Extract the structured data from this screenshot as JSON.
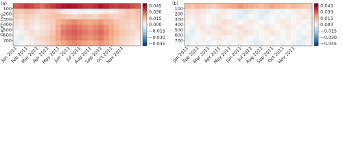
{
  "chart_data": [
    {
      "type": "heatmap",
      "title": "(a)",
      "ylabel": "Depth (m)",
      "colormap": "RdBu_r",
      "x": [
        "Jan 2011",
        null,
        "Feb 2011",
        null,
        "Mar 2011",
        null,
        "Apr 2011",
        null,
        "May 2011",
        null,
        "Jun 2011",
        null,
        "Jul 2011",
        null,
        "Aug 2011",
        null,
        "Sep 2011",
        null,
        "Oct 2011",
        null,
        "Nov 2011",
        null,
        null,
        null
      ],
      "y": [
        50,
        150,
        250,
        350,
        450,
        550,
        650,
        750
      ],
      "ylim": [
        800,
        0
      ],
      "yticks": [
        100,
        200,
        300,
        400,
        500,
        600,
        700
      ],
      "clim": [
        -0.05,
        0.05
      ],
      "cticks": [
        0.045,
        {
          "value": 0.03,
          "label": "0.030"
        },
        0.015,
        {
          "value": 0,
          "label": "0.000"
        },
        {
          "value": -0.015,
          "label": "−0.015"
        },
        {
          "value": -0.03,
          "label": "−0.030"
        },
        {
          "value": -0.045,
          "label": "−0.045"
        }
      ],
      "z": [
        [
          0.03,
          0.032,
          0.035,
          0.033,
          0.03,
          0.028,
          0.032,
          0.035,
          0.038,
          0.04,
          0.042,
          0.04,
          0.038,
          0.036,
          0.035,
          0.037,
          0.04,
          0.038,
          0.035,
          0.034,
          0.036,
          0.035,
          0.032,
          0.03
        ],
        [
          0.012,
          0.01,
          0.014,
          0.012,
          0.01,
          0.008,
          0.01,
          0.012,
          0.008,
          0.004,
          0.002,
          0.0,
          -0.002,
          0.002,
          0.0,
          -0.002,
          0.002,
          0.004,
          0.002,
          0.004,
          0.008,
          0.012,
          0.01,
          0.014
        ],
        [
          0.01,
          0.008,
          0.01,
          0.008,
          0.006,
          0.008,
          0.01,
          0.012,
          0.014,
          0.012,
          0.01,
          0.008,
          0.01,
          0.012,
          0.01,
          0.008,
          0.012,
          0.014,
          0.01,
          0.008,
          0.01,
          0.012,
          0.01,
          0.012
        ],
        [
          0.006,
          0.004,
          0.008,
          0.006,
          0.004,
          0.006,
          0.008,
          0.01,
          0.016,
          0.02,
          0.022,
          0.024,
          0.022,
          0.02,
          0.018,
          0.02,
          0.022,
          0.018,
          0.016,
          0.012,
          0.01,
          0.01,
          0.008,
          0.01
        ],
        [
          0.004,
          0.002,
          0.006,
          0.004,
          0.002,
          0.004,
          0.006,
          0.01,
          0.018,
          0.024,
          0.026,
          0.028,
          0.026,
          0.024,
          0.022,
          0.024,
          0.026,
          0.022,
          0.018,
          0.014,
          0.01,
          0.008,
          0.006,
          0.008
        ],
        [
          0.0,
          -0.002,
          0.004,
          0.006,
          0.004,
          0.006,
          0.008,
          0.012,
          0.02,
          0.026,
          0.028,
          0.03,
          0.028,
          0.026,
          0.024,
          0.026,
          0.028,
          0.024,
          0.02,
          0.016,
          0.012,
          0.01,
          0.008,
          0.006
        ],
        [
          -0.002,
          -0.004,
          0.002,
          0.004,
          0.006,
          0.008,
          0.01,
          0.014,
          0.02,
          0.024,
          0.026,
          0.028,
          0.026,
          0.024,
          0.022,
          0.024,
          0.026,
          0.022,
          0.018,
          0.014,
          0.01,
          0.008,
          0.006,
          0.004
        ],
        [
          -0.004,
          -0.002,
          0.0,
          0.002,
          0.004,
          0.006,
          0.008,
          0.012,
          0.016,
          0.02,
          0.022,
          0.024,
          0.022,
          0.02,
          0.018,
          0.02,
          0.022,
          0.02,
          0.016,
          0.012,
          0.008,
          0.006,
          0.004,
          0.002
        ]
      ]
    },
    {
      "type": "heatmap",
      "title": "(b)",
      "colormap": "RdBu_r",
      "x": [
        "Jan 2011",
        null,
        "Feb 2011",
        null,
        "Mar 2011",
        null,
        "Apr 2011",
        null,
        "May 2011",
        null,
        "Jun 2011",
        null,
        "Jul 2011",
        null,
        "Aug 2011",
        null,
        "Sep 2011",
        null,
        "Oct 2011",
        null,
        "Nov 2011",
        null,
        null,
        null
      ],
      "y": [
        50,
        150,
        250,
        350,
        450,
        550,
        650,
        750
      ],
      "ylim": [
        800,
        0
      ],
      "yticks": [
        100,
        200,
        300,
        400,
        500,
        600,
        700
      ],
      "clim": [
        -0.05,
        0.05
      ],
      "cticks": [
        0.045,
        {
          "value": 0.03,
          "label": "0.030"
        },
        0.015,
        {
          "value": 0,
          "label": "0.000"
        },
        {
          "value": -0.015,
          "label": "−0.015"
        },
        {
          "value": -0.03,
          "label": "−0.030"
        },
        {
          "value": -0.045,
          "label": "−0.045"
        }
      ],
      "z": [
        [
          0.014,
          0.012,
          0.016,
          0.014,
          0.012,
          0.01,
          0.014,
          0.016,
          0.018,
          0.02,
          0.022,
          0.02,
          0.018,
          0.016,
          0.014,
          0.016,
          0.02,
          0.018,
          0.016,
          0.014,
          0.016,
          0.014,
          0.012,
          0.01
        ],
        [
          0.006,
          0.004,
          0.006,
          0.004,
          0.002,
          0.0,
          0.002,
          0.004,
          0.002,
          -0.002,
          -0.004,
          -0.006,
          -0.004,
          -0.002,
          -0.004,
          -0.006,
          -0.002,
          0.0,
          -0.002,
          0.0,
          0.002,
          0.004,
          0.002,
          0.004
        ],
        [
          0.004,
          0.002,
          0.004,
          0.002,
          0.0,
          0.002,
          0.004,
          0.002,
          0.0,
          -0.002,
          -0.004,
          -0.002,
          0.0,
          -0.002,
          -0.004,
          -0.002,
          0.0,
          0.002,
          0.0,
          -0.002,
          0.0,
          0.002,
          0.004,
          0.002
        ],
        [
          0.002,
          0.0,
          0.004,
          0.002,
          0.0,
          0.002,
          0.004,
          0.006,
          0.004,
          0.002,
          0.0,
          0.002,
          0.004,
          0.002,
          0.0,
          -0.002,
          0.0,
          0.002,
          0.004,
          0.002,
          0.0,
          0.002,
          0.0,
          0.002
        ],
        [
          0.0,
          -0.002,
          0.002,
          0.004,
          0.002,
          0.004,
          0.006,
          0.004,
          0.002,
          0.004,
          0.006,
          0.004,
          0.002,
          0.0,
          0.002,
          0.004,
          0.002,
          0.0,
          0.002,
          0.004,
          0.002,
          0.0,
          -0.002,
          0.0
        ],
        [
          -0.002,
          -0.004,
          0.0,
          0.002,
          0.004,
          0.002,
          0.004,
          0.006,
          0.004,
          0.002,
          0.004,
          0.006,
          0.004,
          0.002,
          0.0,
          0.002,
          0.004,
          0.002,
          0.0,
          0.002,
          0.0,
          -0.002,
          0.0,
          0.002
        ],
        [
          -0.004,
          -0.002,
          0.0,
          0.002,
          0.0,
          0.002,
          0.004,
          0.002,
          0.0,
          0.002,
          0.004,
          0.002,
          0.0,
          -0.002,
          0.0,
          0.002,
          0.0,
          -0.002,
          0.0,
          0.002,
          0.0,
          -0.002,
          -0.004,
          -0.002
        ],
        [
          -0.002,
          0.0,
          0.002,
          0.0,
          -0.002,
          0.0,
          0.002,
          0.0,
          -0.002,
          0.0,
          0.002,
          0.0,
          -0.002,
          -0.004,
          -0.002,
          0.0,
          0.002,
          0.0,
          -0.002,
          0.0,
          -0.002,
          -0.004,
          -0.002,
          0.0
        ]
      ]
    }
  ]
}
